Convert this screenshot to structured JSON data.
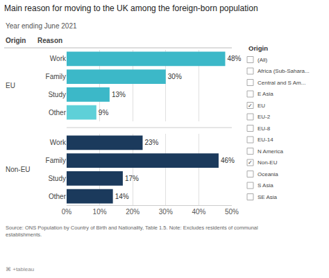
{
  "chart_data": {
    "type": "bar",
    "orientation": "horizontal",
    "title": "Main reason for moving to the UK among the foreign-born population",
    "subtitle": "Year ending June 2021",
    "column_headers": [
      "Origin",
      "Reason"
    ],
    "categories": [
      "Work",
      "Family",
      "Study",
      "Other"
    ],
    "series": [
      {
        "name": "EU",
        "colors": [
          "#3cb8c8",
          "#3cb8c8",
          "#3cb8c8",
          "#5ed0d8"
        ],
        "values": [
          48,
          30,
          13,
          9
        ],
        "value_labels": [
          "48%",
          "30%",
          "13%",
          "9%"
        ]
      },
      {
        "name": "Non-EU",
        "colors": [
          "#1b3a5c",
          "#1b3a5c",
          "#1b3a5c",
          "#1b3a5c"
        ],
        "values": [
          23,
          46,
          17,
          14
        ],
        "value_labels": [
          "23%",
          "46%",
          "17%",
          "14%"
        ]
      }
    ],
    "data_labels": true,
    "xlim": [
      0,
      50
    ],
    "xticks": [
      {
        "value": 0,
        "label": "0%"
      },
      {
        "value": 10,
        "label": "10%"
      },
      {
        "value": 20,
        "label": "20%"
      },
      {
        "value": 30,
        "label": "30%"
      },
      {
        "value": 40,
        "label": "40%"
      },
      {
        "value": 50,
        "label": "50%"
      }
    ],
    "grid": true,
    "source": "Source: ONS Population by Country of Birth and Nationality, Table 1.5. Note: Excludes residents of communal\nestablishments.",
    "logo": "⌘ +tableau",
    "origin_panel": {
      "title": "Origin",
      "items": [
        "(All)",
        "Africa (Sub-Sahara...",
        "Central and S Am...",
        "E Asia",
        "EU",
        "EU-2",
        "EU-8",
        "EU-14",
        "N America",
        "Non-EU",
        "Oceania",
        "S Asia",
        "SE Asia"
      ],
      "checked": [
        "EU",
        "Non-EU"
      ],
      "check_mark": "✓"
    }
  }
}
